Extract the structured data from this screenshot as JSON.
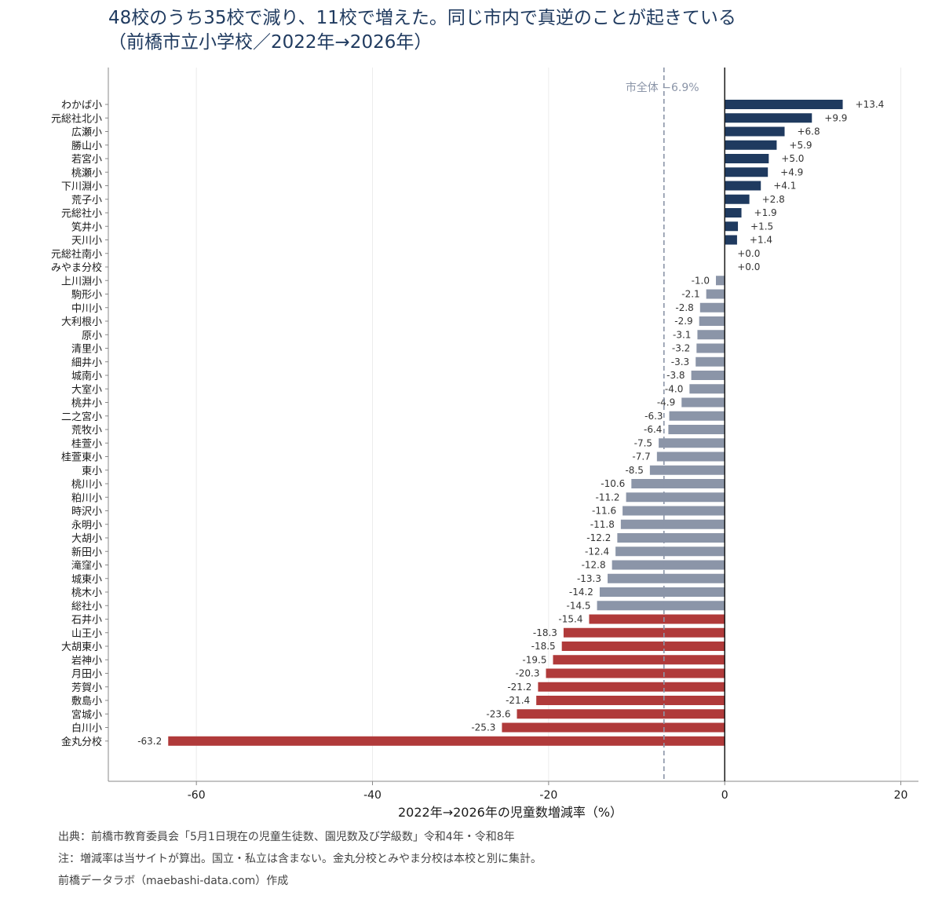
{
  "title_line1": "48校のうち35校で減り、11校で増えた。同じ市内で真逆のことが起きている",
  "title_line2": "（前橋市立小学校／2022年→2026年）",
  "notes": {
    "source": "出典：前橋市教育委員会「5月1日現在の児童生徒数、園児数及び学級数」令和4年・令和8年",
    "remark": "注：増減率は当サイトが算出。国立・私立は含まない。金丸分校とみやま分校は本校と別に集計。",
    "credit": "前橋データラボ（maebashi-data.com）作成"
  },
  "colors": {
    "increase": "#1f3a5f",
    "decrease": "#8b95a8",
    "large_decrease": "#b03a3a",
    "reference_line": "#8b95a8",
    "axis": "#1a1a1a"
  },
  "chart_data": {
    "type": "bar",
    "orientation": "horizontal",
    "xlabel": "2022年→2026年の児童数増減率（%）",
    "xlim": [
      -70,
      22
    ],
    "xticks": [
      -60,
      -40,
      -20,
      0,
      20
    ],
    "grid": "vertical",
    "reference_line": {
      "value": -6.9,
      "label": "市全体 −6.9%"
    },
    "categories": [
      "わかば小",
      "元総社北小",
      "広瀬小",
      "勝山小",
      "若宮小",
      "桃瀬小",
      "下川淵小",
      "荒子小",
      "元総社小",
      "笂井小",
      "天川小",
      "元総社南小",
      "みやま分校",
      "上川淵小",
      "駒形小",
      "中川小",
      "大利根小",
      "原小",
      "清里小",
      "細井小",
      "城南小",
      "大室小",
      "桃井小",
      "二之宮小",
      "荒牧小",
      "桂萱小",
      "桂萱東小",
      "東小",
      "桃川小",
      "粕川小",
      "時沢小",
      "永明小",
      "大胡小",
      "新田小",
      "滝窪小",
      "城東小",
      "桃木小",
      "総社小",
      "石井小",
      "山王小",
      "大胡東小",
      "岩神小",
      "月田小",
      "芳賀小",
      "敷島小",
      "宮城小",
      "白川小",
      "金丸分校"
    ],
    "values": [
      13.4,
      9.9,
      6.8,
      5.9,
      5.0,
      4.9,
      4.1,
      2.8,
      1.9,
      1.5,
      1.4,
      0.0,
      0.0,
      -1.0,
      -2.1,
      -2.8,
      -2.9,
      -3.1,
      -3.2,
      -3.3,
      -3.8,
      -4.0,
      -4.9,
      -6.3,
      -6.4,
      -7.5,
      -7.7,
      -8.5,
      -10.6,
      -11.2,
      -11.6,
      -11.8,
      -12.2,
      -12.4,
      -12.8,
      -13.3,
      -14.2,
      -14.5,
      -15.4,
      -18.3,
      -18.5,
      -19.5,
      -20.3,
      -21.2,
      -21.4,
      -23.6,
      -25.3,
      -63.2
    ],
    "value_labels": [
      "+13.4",
      "+9.9",
      "+6.8",
      "+5.9",
      "+5.0",
      "+4.9",
      "+4.1",
      "+2.8",
      "+1.9",
      "+1.5",
      "+1.4",
      "+0.0",
      "+0.0",
      "-1.0",
      "-2.1",
      "-2.8",
      "-2.9",
      "-3.1",
      "-3.2",
      "-3.3",
      "-3.8",
      "-4.0",
      "-4.9",
      "-6.3",
      "-6.4",
      "-7.5",
      "-7.7",
      "-8.5",
      "-10.6",
      "-11.2",
      "-11.6",
      "-11.8",
      "-12.2",
      "-12.4",
      "-12.8",
      "-13.3",
      "-14.2",
      "-14.5",
      "-15.4",
      "-18.3",
      "-18.5",
      "-19.5",
      "-20.3",
      "-21.2",
      "-21.4",
      "-23.6",
      "-25.3",
      "-63.2"
    ],
    "color_threshold": -15
  }
}
